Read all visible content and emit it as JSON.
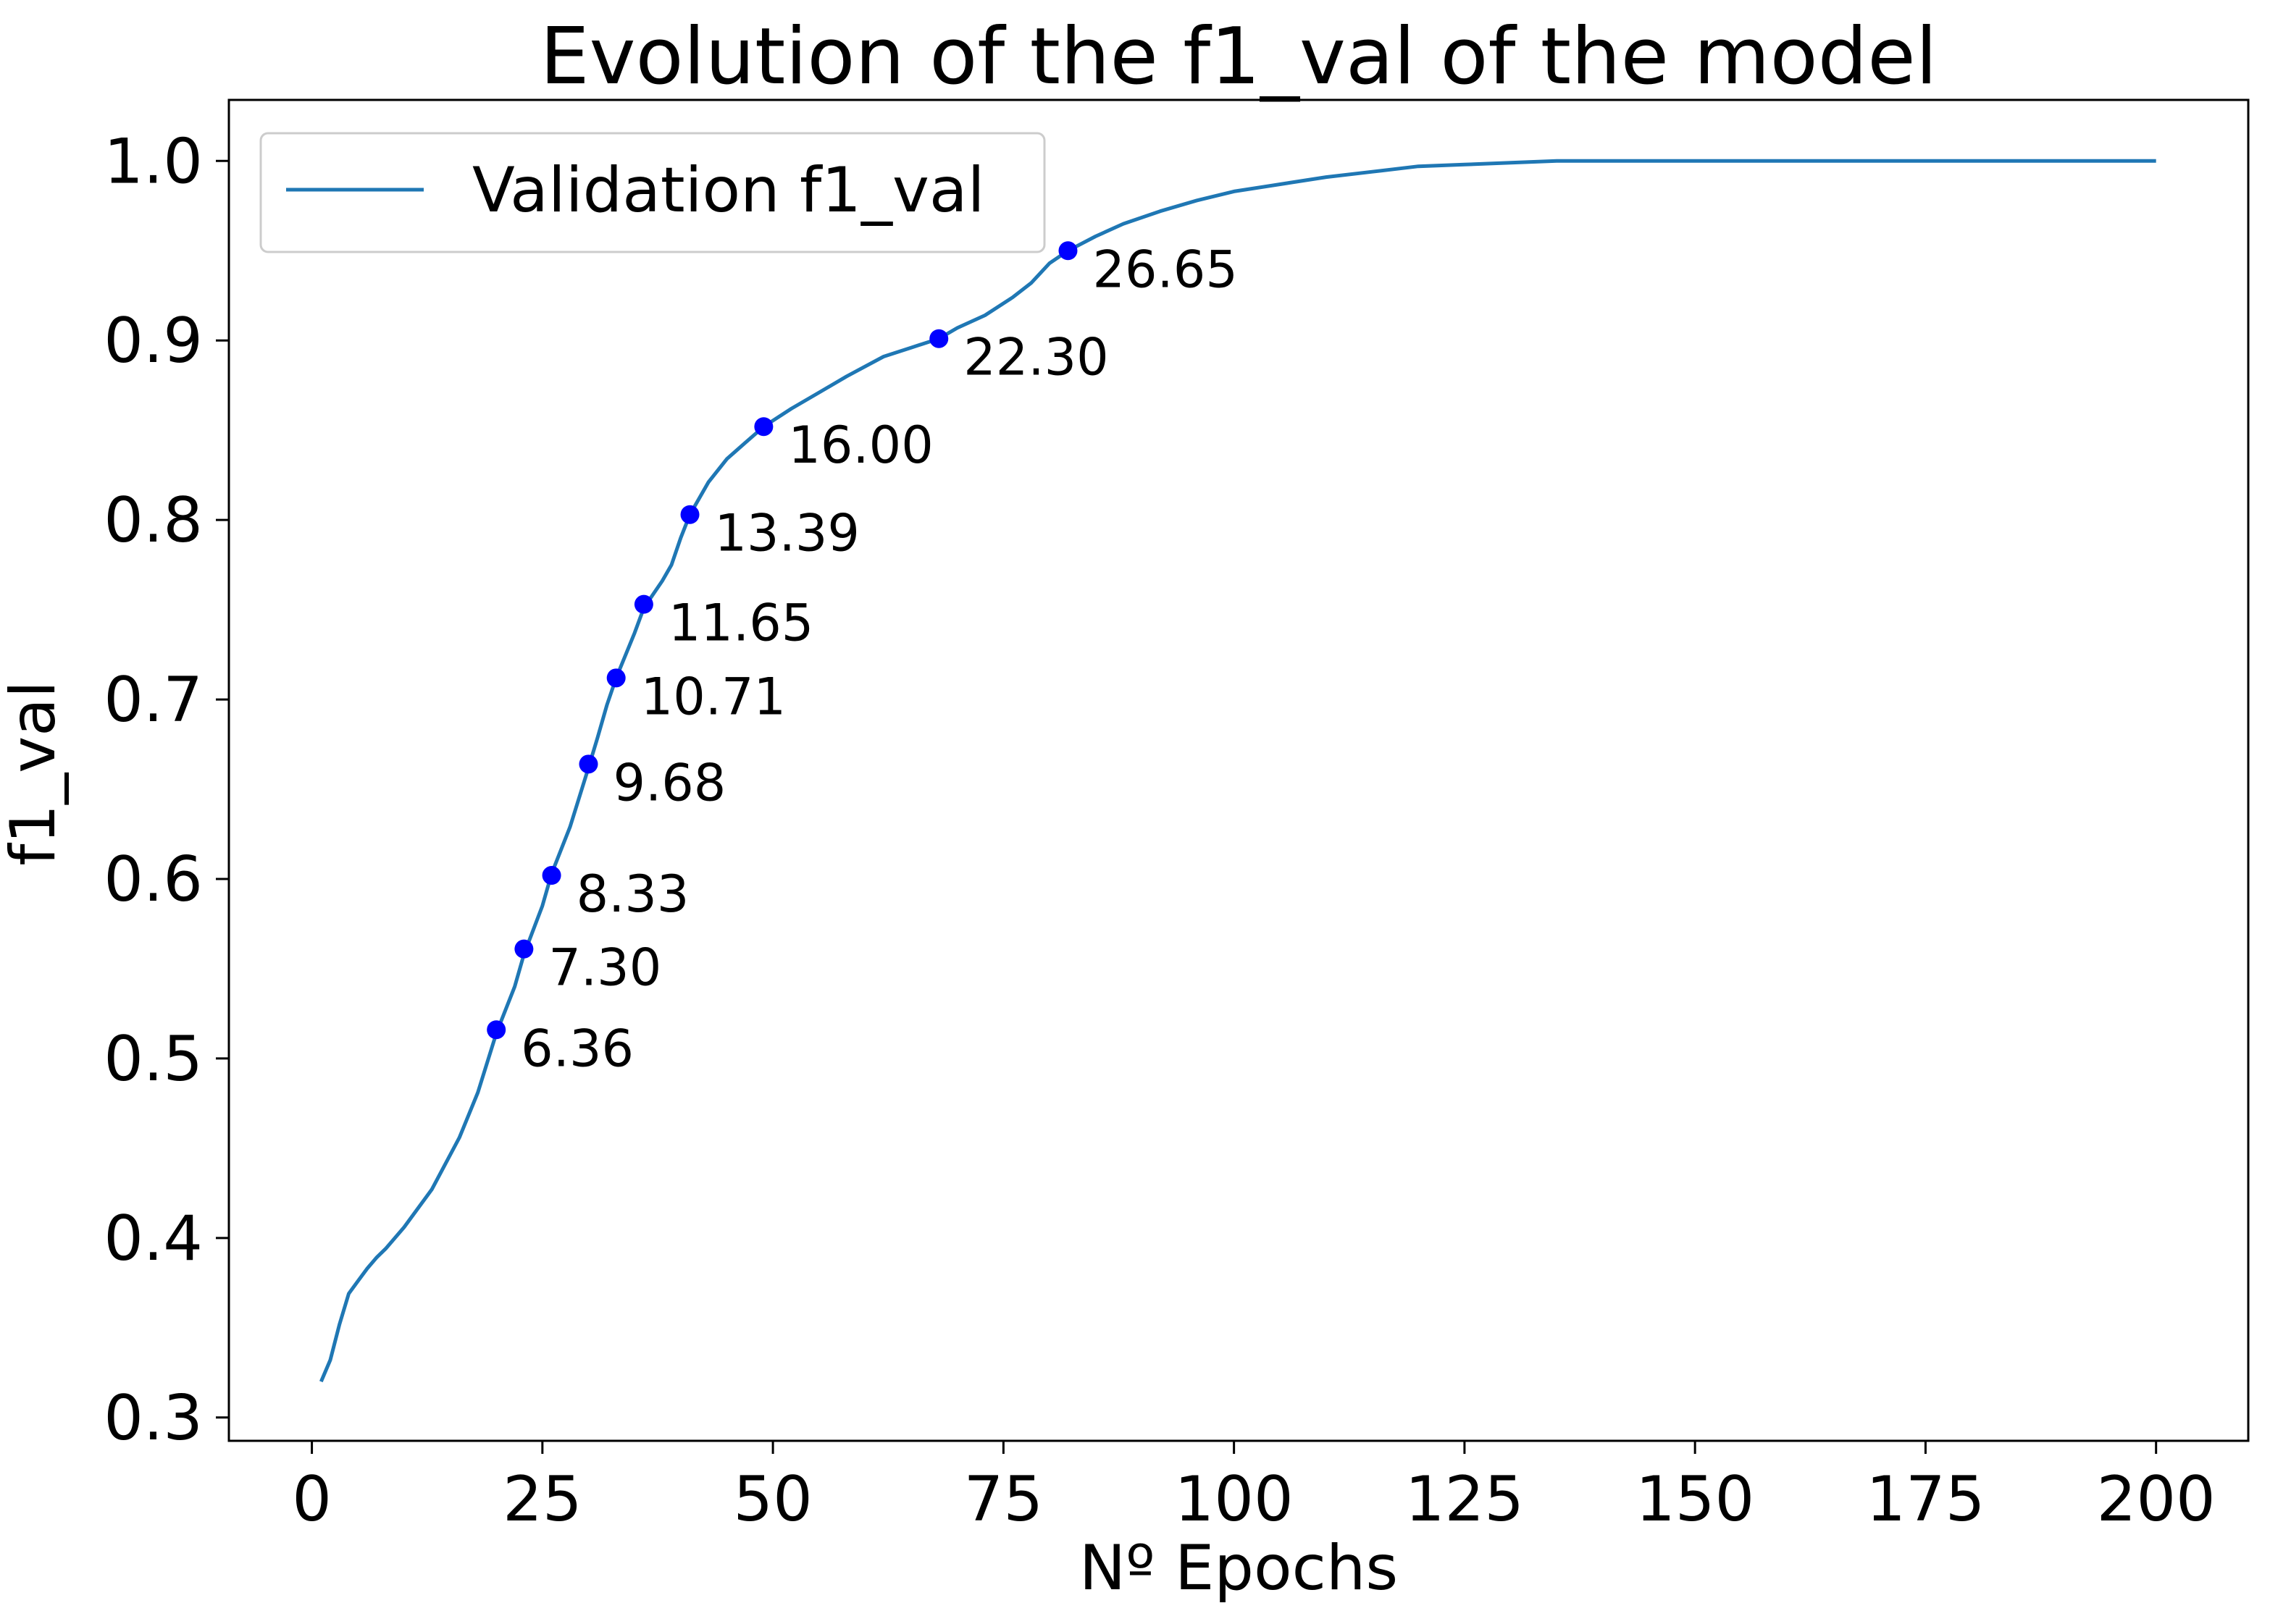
{
  "chart_data": {
    "type": "line",
    "title": "Evolution of the f1_val of the model",
    "xlabel": "Nº Epochs",
    "ylabel": "f1_val",
    "xlim": [
      -9,
      210
    ],
    "ylim": [
      0.287,
      1.034
    ],
    "xticks": [
      0,
      25,
      50,
      75,
      100,
      125,
      150,
      175,
      200
    ],
    "yticks": [
      0.3,
      0.4,
      0.5,
      0.6,
      0.7,
      0.8,
      0.9,
      1.0
    ],
    "grid": false,
    "legend": {
      "placement": "top-left",
      "entries": [
        "Validation f1_val"
      ]
    },
    "colors": {
      "line": "#1f77b4",
      "markers": "#0000ff"
    },
    "series": [
      {
        "name": "Validation f1_val",
        "x": [
          1,
          2,
          3,
          4,
          5,
          6,
          7,
          8,
          10,
          13,
          16,
          18,
          20,
          22,
          23,
          25,
          26,
          28,
          30,
          31,
          32,
          33,
          35,
          36,
          38,
          39,
          40,
          41,
          43,
          45,
          47,
          49,
          52,
          55,
          58,
          62,
          65,
          68,
          70,
          73,
          76,
          78,
          80,
          82,
          85,
          88,
          92,
          96,
          100,
          105,
          110,
          115,
          120,
          125,
          130,
          135,
          140,
          150,
          160,
          170,
          180,
          190,
          200
        ],
        "values": [
          0.32,
          0.332,
          0.352,
          0.369,
          0.376,
          0.383,
          0.389,
          0.394,
          0.406,
          0.427,
          0.456,
          0.481,
          0.514,
          0.54,
          0.558,
          0.585,
          0.603,
          0.629,
          0.662,
          0.679,
          0.697,
          0.712,
          0.737,
          0.751,
          0.766,
          0.775,
          0.79,
          0.803,
          0.821,
          0.834,
          0.843,
          0.852,
          0.862,
          0.871,
          0.88,
          0.891,
          0.896,
          0.901,
          0.907,
          0.914,
          0.924,
          0.932,
          0.943,
          0.95,
          0.958,
          0.965,
          0.972,
          0.978,
          0.983,
          0.987,
          0.991,
          0.994,
          0.997,
          0.998,
          0.999,
          1.0,
          1.0,
          1.0,
          1.0,
          1.0,
          1.0,
          1.0,
          1.0
        ]
      }
    ],
    "points": [
      {
        "x": 20,
        "y": 0.516,
        "label": "6.36"
      },
      {
        "x": 23,
        "y": 0.561,
        "label": "7.30"
      },
      {
        "x": 26,
        "y": 0.602,
        "label": "8.33"
      },
      {
        "x": 30,
        "y": 0.664,
        "label": "9.68"
      },
      {
        "x": 33,
        "y": 0.712,
        "label": "10.71"
      },
      {
        "x": 36,
        "y": 0.753,
        "label": "11.65"
      },
      {
        "x": 41,
        "y": 0.803,
        "label": "13.39"
      },
      {
        "x": 49,
        "y": 0.852,
        "label": "16.00"
      },
      {
        "x": 68,
        "y": 0.901,
        "label": "22.30"
      },
      {
        "x": 82,
        "y": 0.95,
        "label": "26.65"
      }
    ]
  }
}
